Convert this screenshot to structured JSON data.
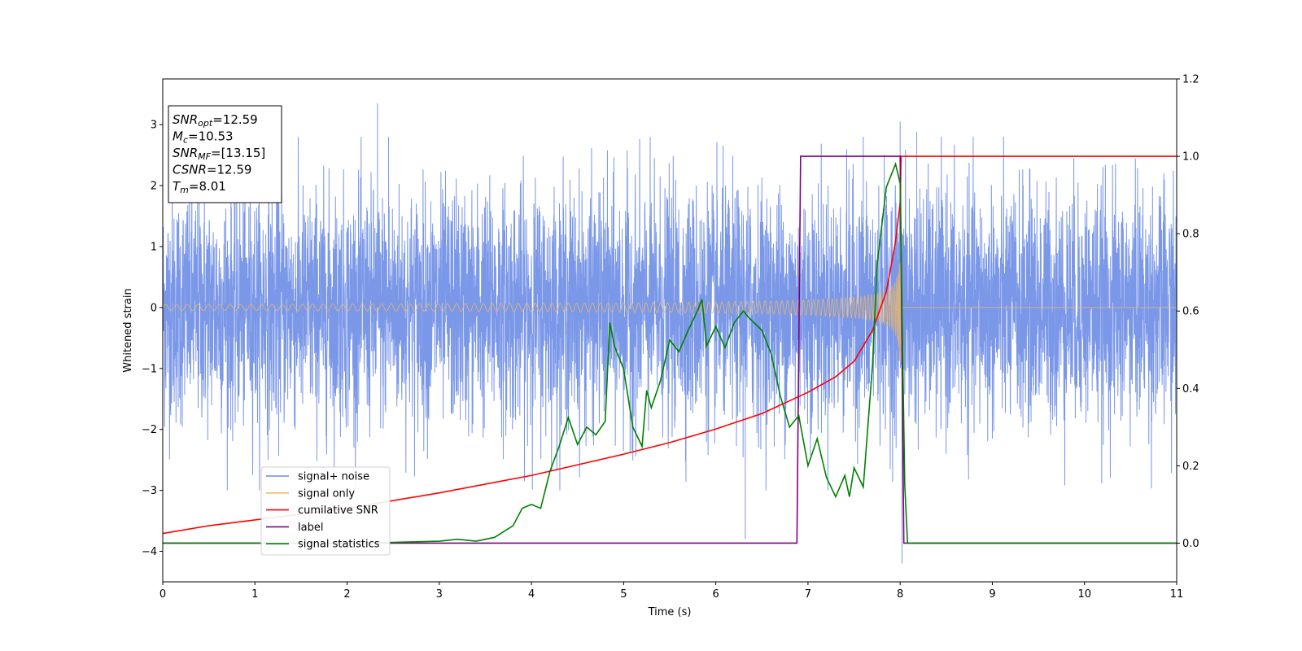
{
  "chart_data": {
    "type": "line",
    "xlabel": "Time (s)",
    "ylabel": "Whitened strain",
    "xlim": [
      0,
      11
    ],
    "ylim_left": [
      -4.5,
      3.75
    ],
    "ylim_right": [
      -0.1,
      1.2
    ],
    "x_ticks": [
      0,
      1,
      2,
      3,
      4,
      5,
      6,
      7,
      8,
      9,
      10,
      11
    ],
    "y_ticks_left": [
      -4,
      -3,
      -2,
      -1,
      0,
      1,
      2,
      3
    ],
    "y_ticks_right": [
      0.0,
      0.2,
      0.4,
      0.6,
      0.8,
      1.0,
      1.2
    ],
    "y_tick_labels_right": [
      "0.0",
      "0.2",
      "0.4",
      "0.6",
      "0.8",
      "1.0",
      "1.2"
    ],
    "grid": false,
    "legend_position": "lower-left",
    "colors": {
      "signal_noise": "#6b8ce6",
      "signal_only": "#f2b866",
      "cumulative_snr": "#ff0000",
      "label": "#800080",
      "signal_statistics": "#008000"
    },
    "series": [
      {
        "name": "signal+ noise",
        "axis": "left",
        "description_values": "noise trace, approx. amplitude range",
        "y_range": [
          -4.2,
          3.35
        ],
        "spikes": [
          {
            "x": 2.33,
            "y": 3.35
          },
          {
            "x": 2.45,
            "y": 2.8
          },
          {
            "x": 7.6,
            "y": 2.8
          },
          {
            "x": 8.0,
            "y": 3.05
          },
          {
            "x": 8.18,
            "y": 2.88
          },
          {
            "x": 6.32,
            "y": -3.8
          },
          {
            "x": 8.02,
            "y": -4.2
          },
          {
            "x": 0.0,
            "y": -3.0
          }
        ]
      },
      {
        "name": "signal only",
        "axis": "left",
        "chirp_start": 0,
        "chirp_end": 8.01,
        "start_amplitude": 0.05,
        "end_amplitude": 0.9
      },
      {
        "name": "cumilative SNR",
        "axis": "right",
        "points": [
          [
            0,
            0.025
          ],
          [
            0.5,
            0.045
          ],
          [
            1,
            0.06
          ],
          [
            2,
            0.09
          ],
          [
            3,
            0.13
          ],
          [
            4,
            0.175
          ],
          [
            5,
            0.23
          ],
          [
            5.5,
            0.26
          ],
          [
            6,
            0.295
          ],
          [
            6.5,
            0.335
          ],
          [
            7,
            0.39
          ],
          [
            7.3,
            0.43
          ],
          [
            7.5,
            0.47
          ],
          [
            7.7,
            0.55
          ],
          [
            7.85,
            0.65
          ],
          [
            7.95,
            0.78
          ],
          [
            8.0,
            0.88
          ],
          [
            8.01,
            1.0
          ],
          [
            11,
            1.0
          ]
        ]
      },
      {
        "name": "label",
        "axis": "right",
        "points": [
          [
            0,
            0.0
          ],
          [
            6.88,
            0.0
          ],
          [
            6.92,
            1.0
          ],
          [
            8.0,
            1.0
          ],
          [
            8.04,
            0.0
          ],
          [
            11,
            0.0
          ]
        ]
      },
      {
        "name": "signal statistics",
        "axis": "right",
        "points": [
          [
            0,
            0.0
          ],
          [
            1,
            0.0
          ],
          [
            2,
            0.0
          ],
          [
            2.5,
            0.002
          ],
          [
            3,
            0.005
          ],
          [
            3.2,
            0.01
          ],
          [
            3.4,
            0.005
          ],
          [
            3.6,
            0.015
          ],
          [
            3.8,
            0.045
          ],
          [
            3.9,
            0.09
          ],
          [
            4.0,
            0.1
          ],
          [
            4.1,
            0.09
          ],
          [
            4.2,
            0.185
          ],
          [
            4.3,
            0.25
          ],
          [
            4.4,
            0.325
          ],
          [
            4.5,
            0.255
          ],
          [
            4.6,
            0.3
          ],
          [
            4.7,
            0.28
          ],
          [
            4.8,
            0.315
          ],
          [
            4.85,
            0.57
          ],
          [
            4.9,
            0.51
          ],
          [
            5.0,
            0.45
          ],
          [
            5.1,
            0.3
          ],
          [
            5.2,
            0.25
          ],
          [
            5.25,
            0.395
          ],
          [
            5.3,
            0.35
          ],
          [
            5.4,
            0.42
          ],
          [
            5.5,
            0.525
          ],
          [
            5.6,
            0.495
          ],
          [
            5.7,
            0.55
          ],
          [
            5.8,
            0.6
          ],
          [
            5.85,
            0.63
          ],
          [
            5.9,
            0.51
          ],
          [
            6.0,
            0.56
          ],
          [
            6.1,
            0.505
          ],
          [
            6.2,
            0.57
          ],
          [
            6.3,
            0.6
          ],
          [
            6.35,
            0.585
          ],
          [
            6.5,
            0.55
          ],
          [
            6.6,
            0.49
          ],
          [
            6.7,
            0.38
          ],
          [
            6.8,
            0.3
          ],
          [
            6.9,
            0.33
          ],
          [
            7.0,
            0.2
          ],
          [
            7.1,
            0.27
          ],
          [
            7.2,
            0.17
          ],
          [
            7.3,
            0.12
          ],
          [
            7.4,
            0.175
          ],
          [
            7.45,
            0.12
          ],
          [
            7.5,
            0.195
          ],
          [
            7.6,
            0.145
          ],
          [
            7.7,
            0.46
          ],
          [
            7.75,
            0.72
          ],
          [
            7.85,
            0.92
          ],
          [
            7.95,
            0.98
          ],
          [
            8.0,
            0.93
          ],
          [
            8.02,
            0.6
          ],
          [
            8.05,
            0.15
          ],
          [
            8.08,
            0.0
          ],
          [
            9,
            0.0
          ],
          [
            10,
            0.0
          ],
          [
            11,
            0.0
          ]
        ]
      }
    ],
    "annotations": [
      {
        "base": "SNR",
        "sub": "opt",
        "value": "=12.59"
      },
      {
        "base": "M",
        "sub": "c",
        "value": "=10.53"
      },
      {
        "base": "SNR",
        "sub": "MF",
        "value": "=[13.15]"
      },
      {
        "base": "CSNR",
        "sub": "",
        "value": "=12.59"
      },
      {
        "base": "T",
        "sub": "m",
        "value": "=8.01"
      }
    ]
  }
}
